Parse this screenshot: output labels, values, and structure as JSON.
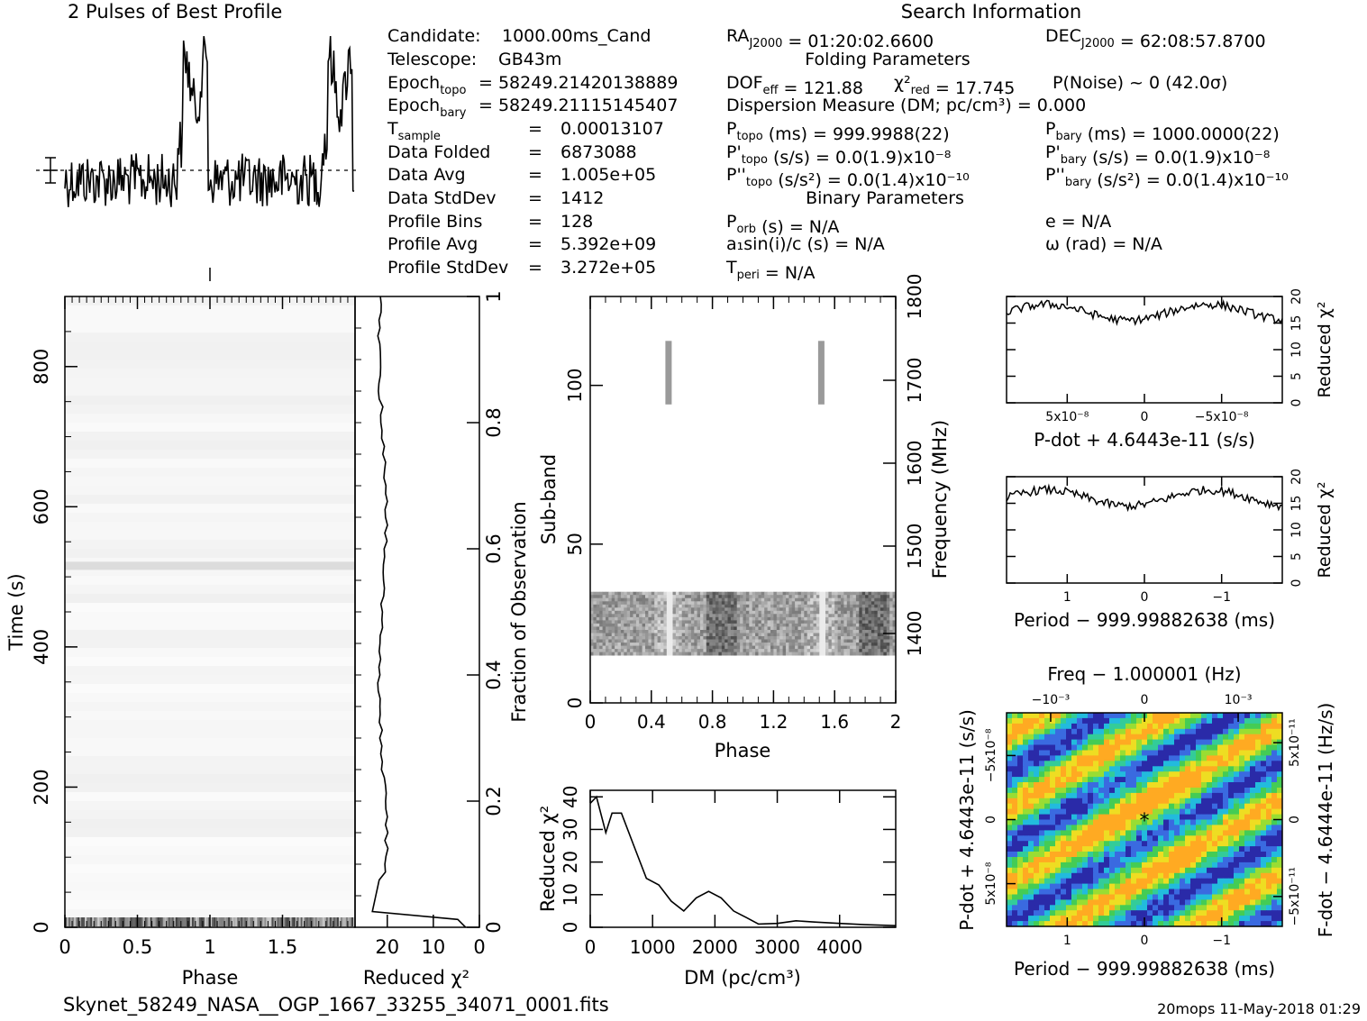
{
  "header": {
    "profile_title": "2 Pulses of Best Profile",
    "search_title": "Search Information",
    "folding_title": "Folding Parameters",
    "binary_title": "Binary Parameters"
  },
  "candidate_info": [
    {
      "label": "Candidate:",
      "value": "1000.00ms_Cand"
    },
    {
      "label": "Telescope:",
      "value": "GB43m"
    },
    {
      "label": "Epoch_topo",
      "value": "= 58249.21420138889"
    },
    {
      "label": "Epoch_bary",
      "value": "= 58249.21115145407"
    },
    {
      "label": "T_sample",
      "value": "0.00013107"
    },
    {
      "label": "Data Folded",
      "value": "6873088"
    },
    {
      "label": "Data Avg",
      "value": "1.005e+05"
    },
    {
      "label": "Data StdDev",
      "value": "1412"
    },
    {
      "label": "Profile Bins",
      "value": "128"
    },
    {
      "label": "Profile Avg",
      "value": "5.392e+09"
    },
    {
      "label": "Profile StdDev",
      "value": "3.272e+05"
    }
  ],
  "search_info": {
    "ra": "RA_J2000 = 01:20:02.6600",
    "dec": "DEC_J2000 = 62:08:57.8700",
    "dof": "DOF_eff = 121.88",
    "chi2": "χ²_red = 17.745",
    "pnoise": "P(Noise) ~ 0   (42.0σ)",
    "dm": "Dispersion Measure (DM; pc/cm³) = 0.000",
    "ptopo": "P_topo (ms) = 999.9988(22)",
    "pbary": "P_bary (ms) = 1000.0000(22)",
    "pdtopo": "P'_topo (s/s) = 0.0(1.9)x10⁻⁸",
    "pdbary": "P'_bary (s/s) = 0.0(1.9)x10⁻⁸",
    "pddtopo": "P''_topo (s/s²) = 0.0(1.4)x10⁻¹⁰",
    "pddbary": "P''_bary (s/s²) = 0.0(1.4)x10⁻¹⁰",
    "porb": "P_orb (s) = N/A",
    "ecc": "e = N/A",
    "a1": "a₁sin(i)/c (s) = N/A",
    "omega": "ω (rad) = N/A",
    "tperi": "T_peri = N/A"
  },
  "footer": {
    "filename": "Skynet_58249_NASA__OGP_1667_33255_34071_0001.fits",
    "stamp": "20mops 11-May-2018 01:29"
  },
  "colors": {
    "ink": "#000000",
    "zoom_low": "#2222aa",
    "zoom_high": "#ffdd00"
  },
  "chart_data": [
    {
      "id": "profile",
      "type": "line",
      "title": "2 Pulses of Best Profile",
      "x_range": [
        0,
        2
      ],
      "pulses": [
        0.85,
        1.85
      ],
      "note_markers": "error bar and mean line"
    },
    {
      "id": "time_phase",
      "type": "heatmap",
      "xlabel": "Phase",
      "ylabel": "Time (s)",
      "xticks": [
        "0",
        "0.5",
        "1",
        "1.5"
      ],
      "yticks": [
        "0",
        "200",
        "400",
        "600",
        "800"
      ],
      "xlim": [
        0,
        2
      ],
      "ylim": [
        0,
        900
      ]
    },
    {
      "id": "time_chi2",
      "type": "line",
      "xlabel": "Reduced χ²",
      "ylabel": "Fraction of Observation",
      "xticks": [
        "20",
        "10",
        "0"
      ],
      "yticks": [
        "0",
        "0.2",
        "0.4",
        "0.6",
        "0.8",
        "1"
      ],
      "xlim": [
        27,
        0
      ],
      "ylim": [
        0,
        1
      ]
    },
    {
      "id": "subband_phase",
      "type": "heatmap",
      "xlabel": "Phase",
      "ylabel": "Sub-band",
      "y2label": "Frequency (MHz)",
      "xticks": [
        "0",
        "0.4",
        "0.8",
        "1.2",
        "1.6",
        "2"
      ],
      "yticks": [
        "0",
        "50",
        "100"
      ],
      "y2ticks": [
        "1400",
        "1500",
        "1600",
        "1700",
        "1800"
      ],
      "xlim": [
        0,
        2
      ],
      "ylim": [
        0,
        128
      ]
    },
    {
      "id": "dm_chi2",
      "type": "line",
      "xlabel": "DM (pc/cm³)",
      "ylabel": "Reduced χ²",
      "xticks": [
        "0",
        "1000",
        "2000",
        "3000",
        "4000"
      ],
      "yticks": [
        "0",
        "10",
        "20",
        "30",
        "40"
      ],
      "xlim": [
        0,
        4900
      ],
      "ylim": [
        0,
        42
      ],
      "x": [
        0,
        100,
        250,
        350,
        500,
        700,
        900,
        1100,
        1300,
        1500,
        1700,
        1900,
        2100,
        2300,
        2500,
        2700,
        3000,
        3300,
        3600,
        4000,
        4400,
        4900
      ],
      "y": [
        38,
        40,
        29,
        35,
        35,
        25,
        15,
        13,
        8,
        5,
        9,
        11,
        9,
        5,
        3,
        1,
        1.2,
        2,
        1.6,
        1.2,
        0.8,
        0.5
      ]
    },
    {
      "id": "pdot_chi2",
      "type": "line",
      "xlabel": "P-dot + 4.6443e-11 (s/s)",
      "ylabel": "Reduced χ²",
      "xticks": [
        "5x10⁻⁸",
        "0",
        "−5x10⁻⁸"
      ],
      "yticks": [
        "0",
        "5",
        "10",
        "15",
        "20"
      ],
      "ylim": [
        0,
        20
      ],
      "level": 17
    },
    {
      "id": "period_chi2",
      "type": "line",
      "xlabel": "Period − 999.99882638 (ms)",
      "ylabel": "Reduced χ²",
      "xticks": [
        "1",
        "0",
        "−1"
      ],
      "yticks": [
        "0",
        "5",
        "10",
        "15",
        "20"
      ],
      "ylim": [
        0,
        20
      ],
      "level": 16
    },
    {
      "id": "p_pdot_plane",
      "type": "heatmap",
      "xlabel": "Period − 999.99882638 (ms)",
      "ylabel": "P-dot + 4.6443e-11 (s/s)",
      "x2label": "Freq − 1.000001 (Hz)",
      "y2label": "F-dot − 4.6444e-11 (Hz/s)",
      "xticks": [
        "1",
        "0",
        "−1"
      ],
      "yticks": [
        "5x10⁻⁸",
        "0",
        "−5x10⁻⁸"
      ],
      "x2ticks": [
        "−10⁻³",
        "0",
        "10⁻³"
      ],
      "y2ticks": [
        "−5x10⁻¹¹",
        "0",
        "5x10⁻¹¹"
      ]
    }
  ]
}
